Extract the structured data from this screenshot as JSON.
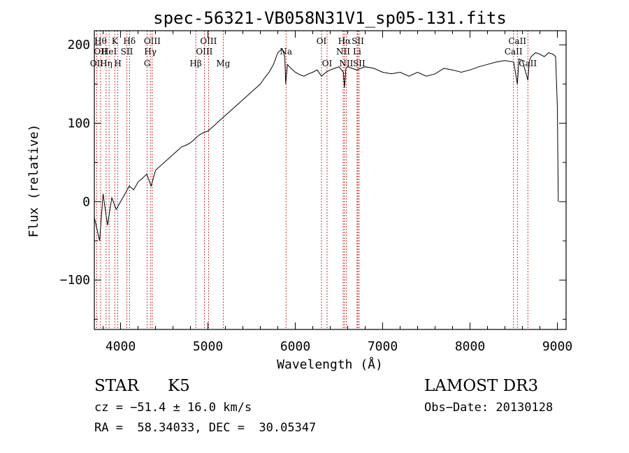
{
  "chart_data": {
    "type": "line",
    "title": "spec-56321-VB058N31V1_sp05-131.fits",
    "xlabel": "Wavelength (Å)",
    "ylabel": "Flux (relative)",
    "xlim": [
      3700,
      9100
    ],
    "ylim": [
      -163,
      218
    ],
    "xticks": [
      4000,
      5000,
      6000,
      7000,
      8000,
      9000
    ],
    "yticks": [
      -100,
      0,
      100,
      200
    ],
    "xtick_labels": [
      "4000",
      "5000",
      "6000",
      "7000",
      "8000",
      "9000"
    ],
    "ytick_labels": [
      "−100",
      "0",
      "100",
      "200"
    ],
    "series": [
      {
        "name": "flux",
        "x": [
          3700,
          3760,
          3800,
          3850,
          3900,
          3950,
          4000,
          4050,
          4100,
          4150,
          4200,
          4250,
          4300,
          4350,
          4400,
          4450,
          4500,
          4550,
          4600,
          4650,
          4700,
          4750,
          4800,
          4850,
          4900,
          4950,
          5000,
          5050,
          5100,
          5150,
          5200,
          5250,
          5300,
          5350,
          5400,
          5450,
          5500,
          5550,
          5600,
          5650,
          5700,
          5750,
          5800,
          5850,
          5880,
          5890,
          5910,
          5950,
          6000,
          6050,
          6100,
          6150,
          6200,
          6250,
          6300,
          6350,
          6400,
          6450,
          6500,
          6550,
          6563,
          6580,
          6600,
          6650,
          6700,
          6750,
          6800,
          6900,
          7000,
          7100,
          7200,
          7300,
          7400,
          7500,
          7600,
          7700,
          7800,
          7900,
          8000,
          8100,
          8200,
          8300,
          8400,
          8500,
          8542,
          8560,
          8600,
          8662,
          8680,
          8700,
          8750,
          8800,
          8850,
          8900,
          8950,
          8980,
          9000,
          9010
        ],
        "y": [
          -20,
          -50,
          10,
          -30,
          5,
          -10,
          0,
          10,
          20,
          15,
          25,
          30,
          35,
          20,
          40,
          45,
          50,
          55,
          60,
          65,
          70,
          72,
          75,
          80,
          85,
          88,
          90,
          95,
          100,
          105,
          110,
          115,
          120,
          125,
          130,
          135,
          140,
          145,
          150,
          158,
          165,
          175,
          190,
          195,
          185,
          150,
          175,
          170,
          165,
          162,
          160,
          163,
          165,
          168,
          160,
          165,
          168,
          170,
          172,
          165,
          145,
          170,
          172,
          170,
          168,
          170,
          172,
          170,
          165,
          163,
          165,
          160,
          165,
          160,
          163,
          170,
          168,
          165,
          168,
          172,
          175,
          178,
          180,
          178,
          150,
          182,
          180,
          155,
          180,
          185,
          190,
          188,
          185,
          190,
          188,
          185,
          120,
          0
        ]
      }
    ],
    "lines": [
      {
        "wave": 3727,
        "top": "",
        "mid": "",
        "bot": "OII"
      },
      {
        "wave": 3771,
        "top": "Hθ",
        "mid": "OII",
        "bot": ""
      },
      {
        "wave": 3835,
        "top": "",
        "mid": "",
        "bot": "Hη"
      },
      {
        "wave": 3869,
        "top": "",
        "mid": "HeI",
        "bot": ""
      },
      {
        "wave": 3934,
        "top": "K",
        "mid": "",
        "bot": ""
      },
      {
        "wave": 3969,
        "top": "",
        "mid": "",
        "bot": "H"
      },
      {
        "wave": 4072,
        "top": "",
        "mid": "SII",
        "bot": ""
      },
      {
        "wave": 4102,
        "top": "Hδ",
        "mid": "",
        "bot": ""
      },
      {
        "wave": 4305,
        "top": "",
        "mid": "",
        "bot": "G"
      },
      {
        "wave": 4341,
        "top": "",
        "mid": "Hγ",
        "bot": ""
      },
      {
        "wave": 4363,
        "top": "OIII",
        "mid": "",
        "bot": ""
      },
      {
        "wave": 4861,
        "top": "",
        "mid": "",
        "bot": "Hβ"
      },
      {
        "wave": 4959,
        "top": "",
        "mid": "OIII",
        "bot": ""
      },
      {
        "wave": 5007,
        "top": "OIII",
        "mid": "",
        "bot": ""
      },
      {
        "wave": 5175,
        "top": "",
        "mid": "",
        "bot": "Mg"
      },
      {
        "wave": 5894,
        "top": "",
        "mid": "Na",
        "bot": ""
      },
      {
        "wave": 6300,
        "top": "OI",
        "mid": "",
        "bot": ""
      },
      {
        "wave": 6364,
        "top": "",
        "mid": "",
        "bot": "OI"
      },
      {
        "wave": 6548,
        "top": "",
        "mid": "NII",
        "bot": ""
      },
      {
        "wave": 6563,
        "top": "Hα",
        "mid": "",
        "bot": ""
      },
      {
        "wave": 6583,
        "top": "",
        "mid": "",
        "bot": "NII"
      },
      {
        "wave": 6707,
        "top": "",
        "mid": "Li",
        "bot": ""
      },
      {
        "wave": 6716,
        "top": "SII",
        "mid": "",
        "bot": ""
      },
      {
        "wave": 6731,
        "top": "",
        "mid": "",
        "bot": "SII"
      },
      {
        "wave": 8498,
        "top": "",
        "mid": "CaII",
        "bot": ""
      },
      {
        "wave": 8542,
        "top": "CaII",
        "mid": "",
        "bot": ""
      },
      {
        "wave": 8662,
        "top": "",
        "mid": "",
        "bot": "CaII"
      }
    ]
  },
  "info": {
    "class": "STAR",
    "subclass": "K5",
    "survey": "LAMOST DR3",
    "redshift": "cz = −51.4 ± 16.0 km/s",
    "obs_date": "Obs−Date: 20130128",
    "coords": "RA =  58.34033, DEC =  30.05347"
  },
  "colors": {
    "axis": "#000000",
    "spectrum": "#000000",
    "line_marker": "#cc0000"
  }
}
